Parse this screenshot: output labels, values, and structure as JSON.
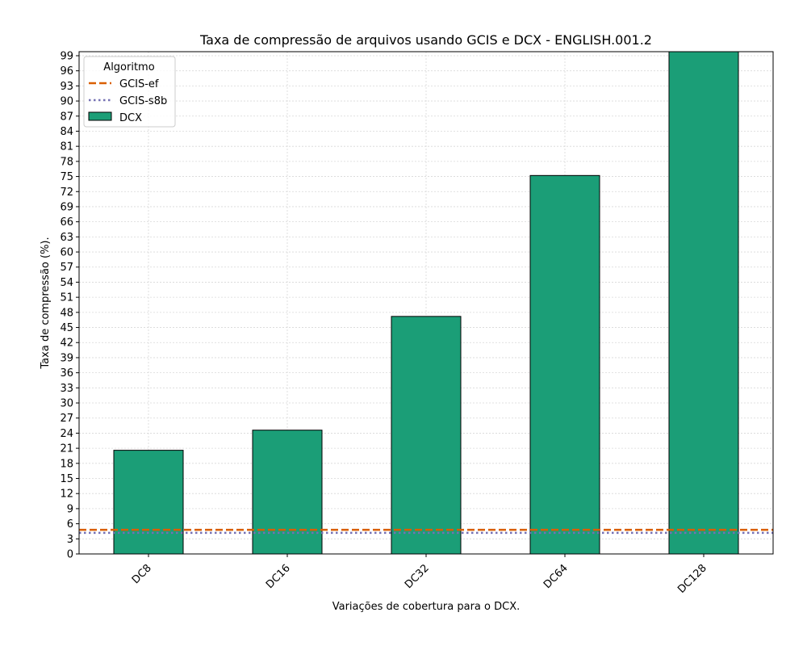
{
  "chart_data": {
    "type": "bar",
    "title": "Taxa de compressão de arquivos usando GCIS e DCX -  ENGLISH.001.2",
    "xlabel": "Variações de cobertura para o DCX.",
    "ylabel": "Taxa de compressão (%).",
    "categories": [
      "DC8",
      "DC16",
      "DC32",
      "DC64",
      "DC128"
    ],
    "series": [
      {
        "name": "DCX",
        "values": [
          20.6,
          24.6,
          47.2,
          75.2,
          100.5
        ],
        "color": "#1b9e77"
      }
    ],
    "reference_lines": [
      {
        "name": "GCIS-ef",
        "value": 4.8,
        "color": "#d95f02",
        "style": "dashed"
      },
      {
        "name": "GCIS-s8b",
        "value": 4.2,
        "color": "#7570b3",
        "style": "dotted"
      }
    ],
    "ylim": [
      0,
      99.8
    ],
    "yticks": [
      0,
      3,
      6,
      9,
      12,
      15,
      18,
      21,
      24,
      27,
      30,
      33,
      36,
      39,
      42,
      45,
      48,
      51,
      54,
      57,
      60,
      63,
      66,
      69,
      72,
      75,
      78,
      81,
      84,
      87,
      90,
      93,
      96,
      99
    ],
    "grid": true,
    "legend": {
      "title": "Algoritmo",
      "placement": "top-left",
      "entries": [
        "GCIS-ef",
        "GCIS-s8b",
        "DCX"
      ]
    }
  }
}
